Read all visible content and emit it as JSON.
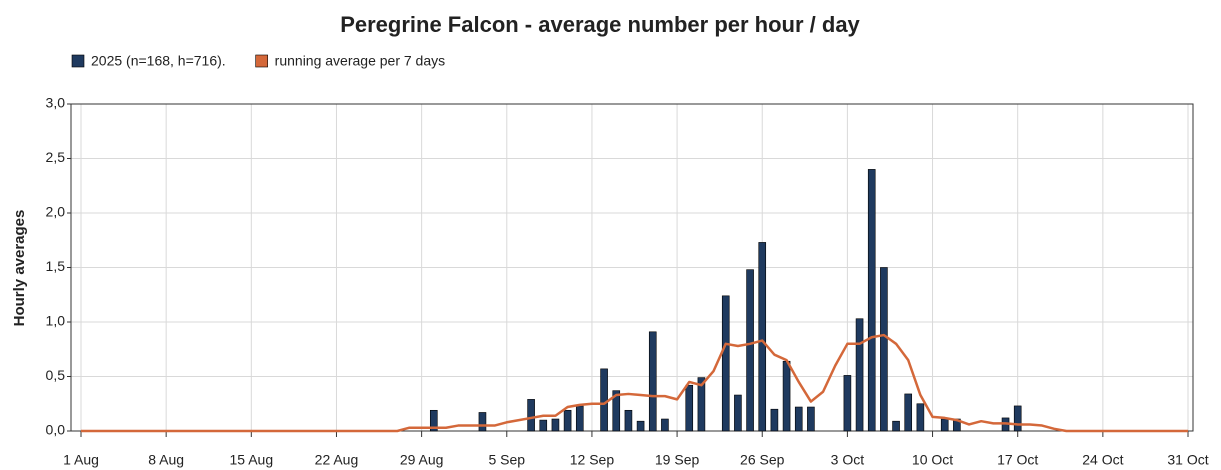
{
  "chart_data": {
    "type": "bar",
    "title": "Peregrine Falcon - average number per hour / day",
    "y_label": "Hourly averages",
    "categories": [
      "1 Aug",
      null,
      null,
      null,
      null,
      null,
      null,
      "8 Aug",
      null,
      null,
      null,
      null,
      null,
      null,
      "15 Aug",
      null,
      null,
      null,
      null,
      null,
      null,
      "22 Aug",
      null,
      null,
      null,
      null,
      null,
      null,
      "29 Aug",
      null,
      null,
      null,
      null,
      null,
      null,
      "5 Sep",
      null,
      null,
      null,
      null,
      null,
      null,
      "12 Sep",
      null,
      null,
      null,
      null,
      null,
      null,
      "19 Sep",
      null,
      null,
      null,
      null,
      null,
      null,
      "26 Sep",
      null,
      null,
      null,
      null,
      null,
      null,
      "3 Oct",
      null,
      null,
      null,
      null,
      null,
      null,
      "10 Oct",
      null,
      null,
      null,
      null,
      null,
      null,
      "17 Oct",
      null,
      null,
      null,
      null,
      null,
      null,
      "24 Oct",
      null,
      null,
      null,
      null,
      null,
      null,
      "31 Oct"
    ],
    "series": [
      {
        "name": "2025 (n=168, h=716).",
        "color": "#1f3a5f",
        "type": "bar",
        "values": [
          null,
          null,
          null,
          null,
          null,
          null,
          null,
          null,
          null,
          null,
          null,
          null,
          null,
          null,
          null,
          null,
          null,
          null,
          null,
          null,
          null,
          null,
          null,
          null,
          null,
          null,
          null,
          null,
          null,
          0.19,
          null,
          null,
          null,
          0.17,
          null,
          null,
          null,
          0.29,
          0.1,
          0.11,
          0.19,
          0.23,
          null,
          0.57,
          0.37,
          0.19,
          0.09,
          0.91,
          0.11,
          null,
          0.42,
          0.49,
          null,
          1.24,
          0.33,
          1.48,
          1.73,
          0.2,
          0.64,
          0.22,
          0.22,
          null,
          null,
          0.51,
          1.03,
          2.4,
          1.5,
          0.09,
          0.34,
          0.25,
          null,
          0.11,
          0.11,
          null,
          null,
          null,
          0.12,
          0.23,
          null,
          null,
          null,
          null,
          null,
          null,
          null,
          null,
          null,
          null,
          null,
          null,
          null,
          null
        ]
      },
      {
        "name": "running average per 7 days",
        "color": "#d4683a",
        "type": "line",
        "values": [
          0,
          0,
          0,
          0,
          0,
          0,
          0,
          0,
          0,
          0,
          0,
          0,
          0,
          0,
          0,
          0,
          0,
          0,
          0,
          0,
          0,
          0,
          0,
          0,
          0,
          0,
          0,
          0.03,
          0.03,
          0.03,
          0.03,
          0.05,
          0.05,
          0.05,
          0.05,
          0.08,
          0.1,
          0.12,
          0.14,
          0.14,
          0.22,
          0.24,
          0.25,
          0.25,
          0.33,
          0.34,
          0.33,
          0.32,
          0.32,
          0.29,
          0.45,
          0.42,
          0.55,
          0.8,
          0.78,
          0.8,
          0.83,
          0.7,
          0.65,
          0.45,
          0.27,
          0.36,
          0.6,
          0.8,
          0.8,
          0.86,
          0.88,
          0.8,
          0.65,
          0.33,
          0.13,
          0.12,
          0.1,
          0.06,
          0.09,
          0.07,
          0.07,
          0.06,
          0.06,
          0.05,
          0.02,
          0,
          0,
          0,
          0,
          0,
          0,
          0,
          0,
          0,
          0,
          0
        ]
      }
    ],
    "ylim": [
      0,
      3
    ],
    "yticks": [
      {
        "value": 0,
        "label": "0,0"
      },
      {
        "value": 0.5,
        "label": "0,5"
      },
      {
        "value": 1,
        "label": "1,0"
      },
      {
        "value": 1.5,
        "label": "1,5"
      },
      {
        "value": 2,
        "label": "2,0"
      },
      {
        "value": 2.5,
        "label": "2,5"
      },
      {
        "value": 3,
        "label": "3,0"
      }
    ],
    "grid": true
  }
}
